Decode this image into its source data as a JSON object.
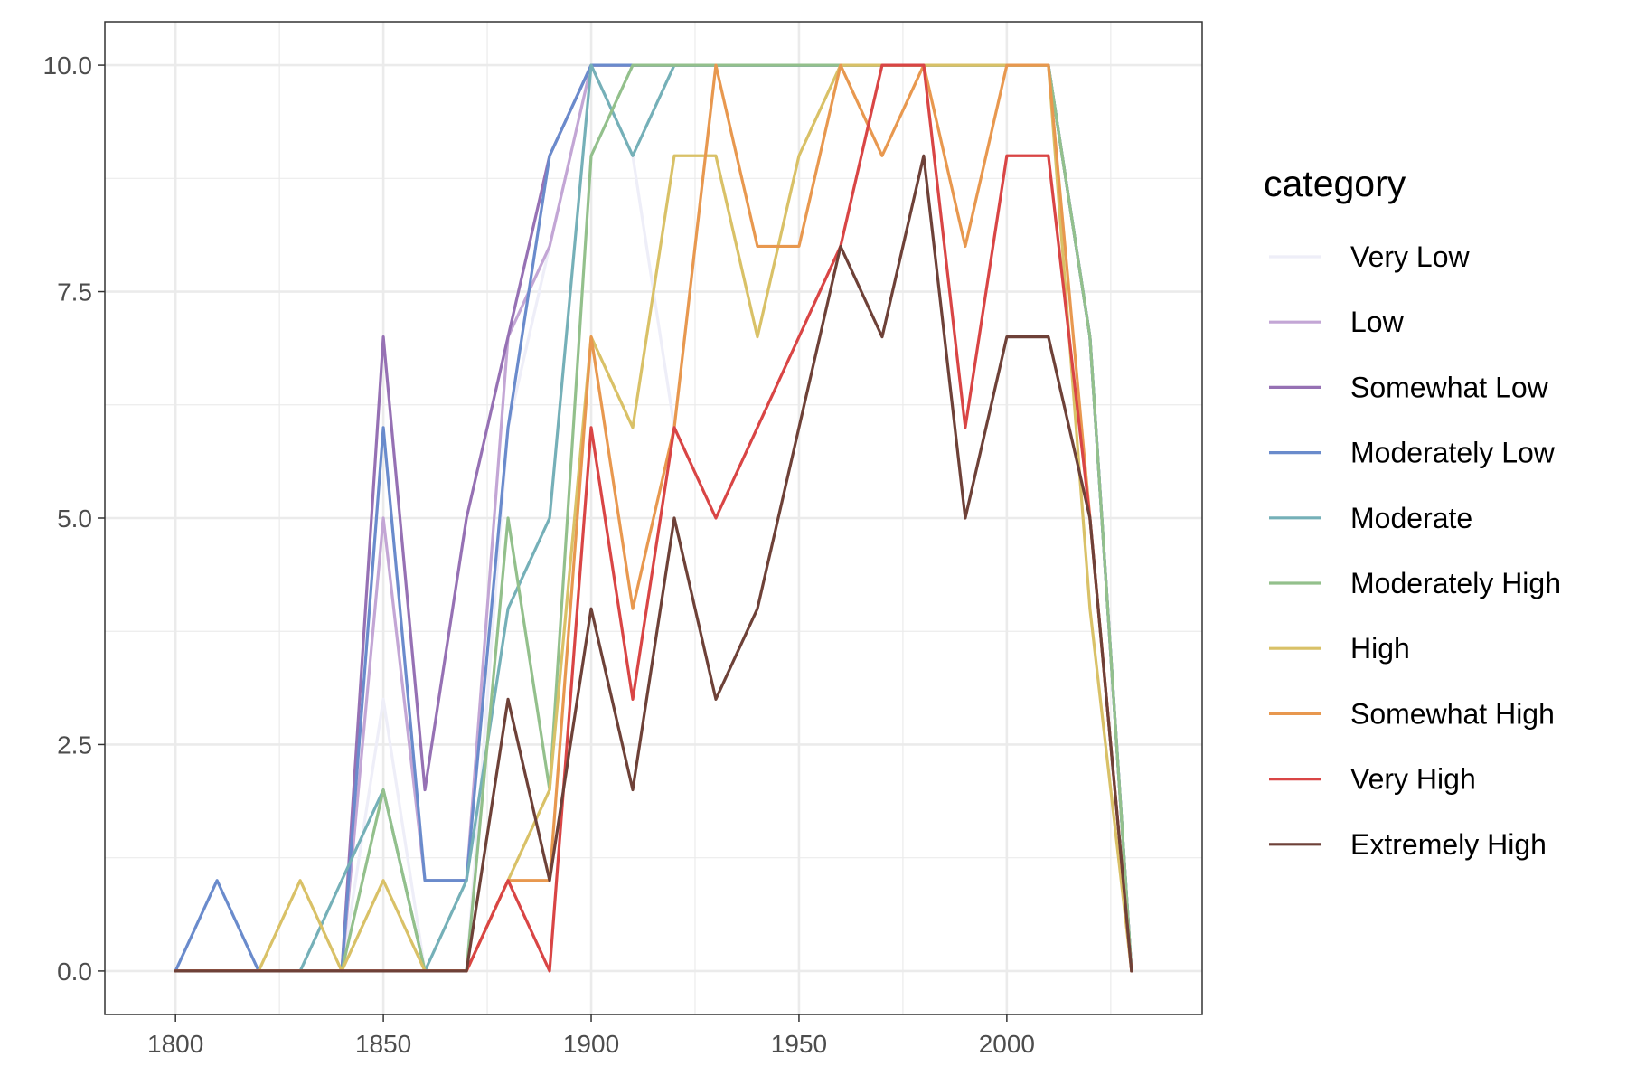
{
  "chart_data": {
    "type": "line",
    "title": "",
    "xlabel": "",
    "ylabel": "",
    "x": [
      1800,
      1810,
      1820,
      1830,
      1840,
      1850,
      1860,
      1870,
      1880,
      1890,
      1900,
      1910,
      1920,
      1930,
      1940,
      1950,
      1960,
      1970,
      1980,
      1990,
      2000,
      2010,
      2020,
      2030
    ],
    "xlim": [
      1783,
      2047
    ],
    "ylim": [
      -0.48,
      10.48
    ],
    "x_ticks": [
      1800,
      1850,
      1900,
      1950,
      2000
    ],
    "x_tick_labels": [
      "1800",
      "1850",
      "1900",
      "1950",
      "2000"
    ],
    "x_minor_ticks": [
      1825,
      1875,
      1925,
      1975,
      2025
    ],
    "y_ticks": [
      0,
      2.5,
      5,
      7.5,
      10
    ],
    "y_tick_labels": [
      "0.0",
      "2.5",
      "5.0",
      "7.5",
      "10.0"
    ],
    "y_minor_ticks": [
      1.25,
      3.75,
      6.25,
      8.75
    ],
    "grid": true,
    "legend_title": "category",
    "legend_position": "right",
    "series": [
      {
        "name": "Very Low",
        "color": "#EEEEF8",
        "values": [
          0,
          0,
          0,
          0,
          0,
          3,
          0,
          0,
          6,
          8,
          10,
          9,
          6,
          10,
          10,
          10,
          10,
          10,
          10,
          10,
          10,
          10,
          7,
          0
        ]
      },
      {
        "name": "Low",
        "color": "#C3A6D5",
        "values": [
          0,
          0,
          0,
          0,
          0,
          5,
          1,
          1,
          7,
          8,
          10,
          10,
          10,
          10,
          10,
          10,
          10,
          10,
          10,
          10,
          10,
          10,
          7,
          0
        ]
      },
      {
        "name": "Somewhat Low",
        "color": "#9671B4",
        "values": [
          0,
          0,
          0,
          0,
          0,
          7,
          2,
          5,
          7,
          9,
          10,
          10,
          10,
          10,
          10,
          10,
          10,
          10,
          10,
          10,
          10,
          10,
          7,
          0
        ]
      },
      {
        "name": "Moderately Low",
        "color": "#6A8BCC",
        "values": [
          0,
          1,
          0,
          0,
          0,
          6,
          1,
          1,
          6,
          9,
          10,
          10,
          10,
          10,
          10,
          10,
          10,
          10,
          10,
          10,
          10,
          10,
          7,
          0
        ]
      },
      {
        "name": "Moderate",
        "color": "#75B0B8",
        "values": [
          0,
          0,
          0,
          0,
          1,
          2,
          0,
          1,
          4,
          5,
          10,
          9,
          10,
          10,
          10,
          10,
          10,
          10,
          10,
          10,
          10,
          10,
          7,
          0
        ]
      },
      {
        "name": "Moderately High",
        "color": "#93C08C",
        "values": [
          0,
          0,
          0,
          0,
          0,
          2,
          0,
          0,
          5,
          2,
          9,
          10,
          10,
          10,
          10,
          10,
          10,
          10,
          10,
          10,
          10,
          10,
          7,
          0
        ]
      },
      {
        "name": "High",
        "color": "#D9C167",
        "values": [
          0,
          0,
          0,
          1,
          0,
          1,
          0,
          0,
          1,
          2,
          7,
          6,
          9,
          9,
          7,
          9,
          10,
          10,
          10,
          10,
          10,
          10,
          4,
          0
        ]
      },
      {
        "name": "Somewhat High",
        "color": "#E8984F",
        "values": [
          0,
          0,
          0,
          0,
          0,
          0,
          0,
          0,
          1,
          1,
          7,
          4,
          6,
          10,
          8,
          8,
          10,
          9,
          10,
          8,
          10,
          10,
          5,
          0
        ]
      },
      {
        "name": "Very High",
        "color": "#D94545",
        "values": [
          0,
          0,
          0,
          0,
          0,
          0,
          0,
          0,
          1,
          0,
          6,
          3,
          6,
          5,
          6,
          7,
          8,
          10,
          10,
          6,
          9,
          9,
          5,
          0
        ]
      },
      {
        "name": "Extremely High",
        "color": "#6E4138",
        "values": [
          0,
          0,
          0,
          0,
          0,
          0,
          0,
          0,
          3,
          1,
          4,
          2,
          5,
          3,
          4,
          6,
          8,
          7,
          9,
          5,
          7,
          7,
          5,
          0
        ]
      }
    ]
  }
}
